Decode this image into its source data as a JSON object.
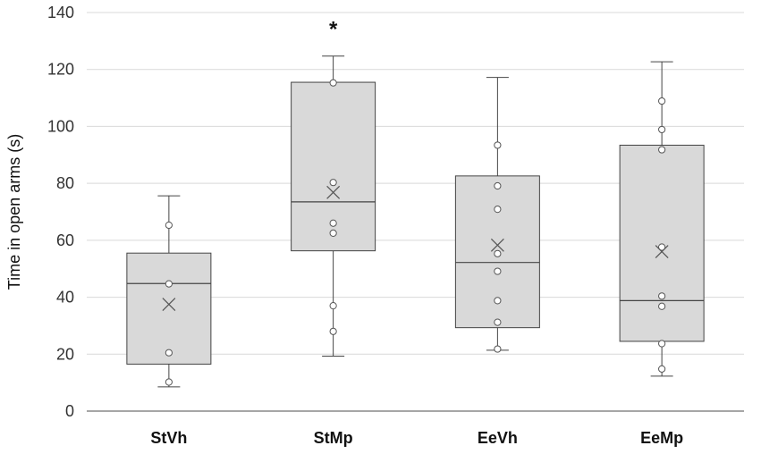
{
  "chart_data": {
    "type": "box",
    "ylabel": "Time in open arms (s)",
    "xlabel": "",
    "ylim": [
      0,
      140
    ],
    "yticks": [
      0,
      20,
      40,
      60,
      80,
      100,
      120,
      140
    ],
    "grid": true,
    "categories": [
      "StVh",
      "StMp",
      "EeVh",
      "EeMp"
    ],
    "boxes": [
      {
        "category": "StVh",
        "min": 8.5,
        "q1": 16.5,
        "median": 44.8,
        "q3": 55.5,
        "max": 75.6,
        "mean": 37.5,
        "points": [
          10.2,
          20.5,
          44.7,
          65.3
        ],
        "annotation": ""
      },
      {
        "category": "StMp",
        "min": 19.3,
        "q1": 56.3,
        "median": 73.5,
        "q3": 115.5,
        "max": 124.7,
        "mean": 76.8,
        "points": [
          28.0,
          37.0,
          62.5,
          66.0,
          80.3,
          115.3
        ],
        "annotation": "*"
      },
      {
        "category": "EeVh",
        "min": 21.4,
        "q1": 29.3,
        "median": 52.2,
        "q3": 82.6,
        "max": 117.2,
        "mean": 58.3,
        "points": [
          21.8,
          31.2,
          38.8,
          49.1,
          55.3,
          70.9,
          79.1,
          93.4
        ],
        "annotation": ""
      },
      {
        "category": "EeMp",
        "min": 12.3,
        "q1": 24.5,
        "median": 38.8,
        "q3": 93.4,
        "max": 122.7,
        "mean": 56.0,
        "points": [
          14.8,
          23.7,
          36.8,
          40.4,
          57.6,
          91.8,
          98.9,
          108.9
        ],
        "annotation": ""
      }
    ],
    "colors": {
      "box_fill": "#d9d9d9",
      "box_stroke": "#444444",
      "grid": "#d9d9d9",
      "axis": "#888888",
      "point_fill": "#ffffff"
    }
  }
}
